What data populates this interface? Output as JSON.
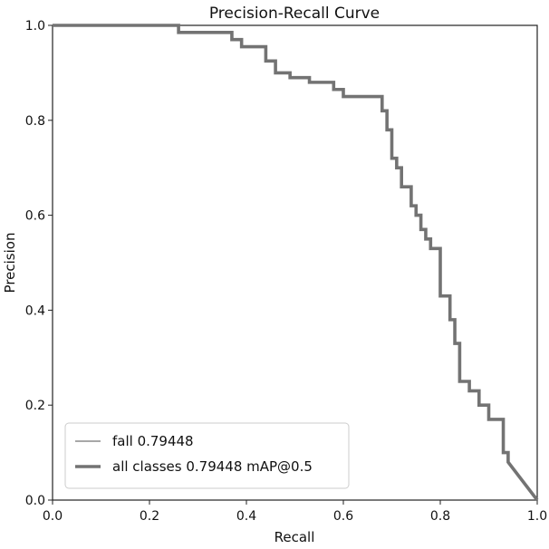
{
  "chart_data": {
    "type": "line",
    "title": "Precision-Recall Curve",
    "xlabel": "Recall",
    "ylabel": "Precision",
    "xlim": [
      0,
      1
    ],
    "ylim": [
      0,
      1
    ],
    "xticks": [
      0.0,
      0.2,
      0.4,
      0.6,
      0.8,
      1.0
    ],
    "yticks": [
      0.0,
      0.2,
      0.4,
      0.6,
      0.8,
      1.0
    ],
    "xtick_labels": [
      "0.0",
      "0.2",
      "0.4",
      "0.6",
      "0.8",
      "1.0"
    ],
    "ytick_labels": [
      "0.0",
      "0.2",
      "0.4",
      "0.6",
      "0.8",
      "1.0"
    ],
    "grid": false,
    "legend_position": "lower-left",
    "series": [
      {
        "name": "fall 0.79448",
        "color": "#8c8c8c",
        "style": "thin",
        "x": [
          0.0,
          0.26,
          0.26,
          0.37,
          0.37,
          0.39,
          0.39,
          0.44,
          0.44,
          0.46,
          0.46,
          0.49,
          0.49,
          0.53,
          0.53,
          0.58,
          0.58,
          0.6,
          0.6,
          0.68,
          0.68,
          0.69,
          0.69,
          0.7,
          0.7,
          0.71,
          0.71,
          0.72,
          0.72,
          0.74,
          0.74,
          0.75,
          0.75,
          0.76,
          0.76,
          0.77,
          0.77,
          0.78,
          0.78,
          0.8,
          0.8,
          0.82,
          0.82,
          0.83,
          0.83,
          0.84,
          0.84,
          0.86,
          0.86,
          0.88,
          0.88,
          0.9,
          0.9,
          0.93,
          0.93,
          0.94,
          0.94,
          1.0
        ],
        "y": [
          1.0,
          1.0,
          0.985,
          0.985,
          0.97,
          0.97,
          0.955,
          0.955,
          0.925,
          0.925,
          0.9,
          0.9,
          0.89,
          0.89,
          0.88,
          0.88,
          0.865,
          0.865,
          0.85,
          0.85,
          0.82,
          0.82,
          0.78,
          0.78,
          0.72,
          0.72,
          0.7,
          0.7,
          0.66,
          0.66,
          0.62,
          0.62,
          0.6,
          0.6,
          0.57,
          0.57,
          0.55,
          0.55,
          0.53,
          0.53,
          0.43,
          0.43,
          0.38,
          0.38,
          0.33,
          0.33,
          0.25,
          0.25,
          0.23,
          0.23,
          0.2,
          0.2,
          0.17,
          0.17,
          0.1,
          0.1,
          0.08,
          0.0
        ]
      },
      {
        "name": "all classes 0.79448 mAP@0.5",
        "color": "#737373",
        "style": "thick",
        "x": [
          0.0,
          0.26,
          0.26,
          0.37,
          0.37,
          0.39,
          0.39,
          0.44,
          0.44,
          0.46,
          0.46,
          0.49,
          0.49,
          0.53,
          0.53,
          0.58,
          0.58,
          0.6,
          0.6,
          0.68,
          0.68,
          0.69,
          0.69,
          0.7,
          0.7,
          0.71,
          0.71,
          0.72,
          0.72,
          0.74,
          0.74,
          0.75,
          0.75,
          0.76,
          0.76,
          0.77,
          0.77,
          0.78,
          0.78,
          0.8,
          0.8,
          0.82,
          0.82,
          0.83,
          0.83,
          0.84,
          0.84,
          0.86,
          0.86,
          0.88,
          0.88,
          0.9,
          0.9,
          0.93,
          0.93,
          0.94,
          0.94,
          1.0
        ],
        "y": [
          1.0,
          1.0,
          0.985,
          0.985,
          0.97,
          0.97,
          0.955,
          0.955,
          0.925,
          0.925,
          0.9,
          0.9,
          0.89,
          0.89,
          0.88,
          0.88,
          0.865,
          0.865,
          0.85,
          0.85,
          0.82,
          0.82,
          0.78,
          0.78,
          0.72,
          0.72,
          0.7,
          0.7,
          0.66,
          0.66,
          0.62,
          0.62,
          0.6,
          0.6,
          0.57,
          0.57,
          0.55,
          0.55,
          0.53,
          0.53,
          0.43,
          0.43,
          0.38,
          0.38,
          0.33,
          0.33,
          0.25,
          0.25,
          0.23,
          0.23,
          0.2,
          0.2,
          0.17,
          0.17,
          0.1,
          0.1,
          0.08,
          0.0
        ]
      }
    ]
  }
}
